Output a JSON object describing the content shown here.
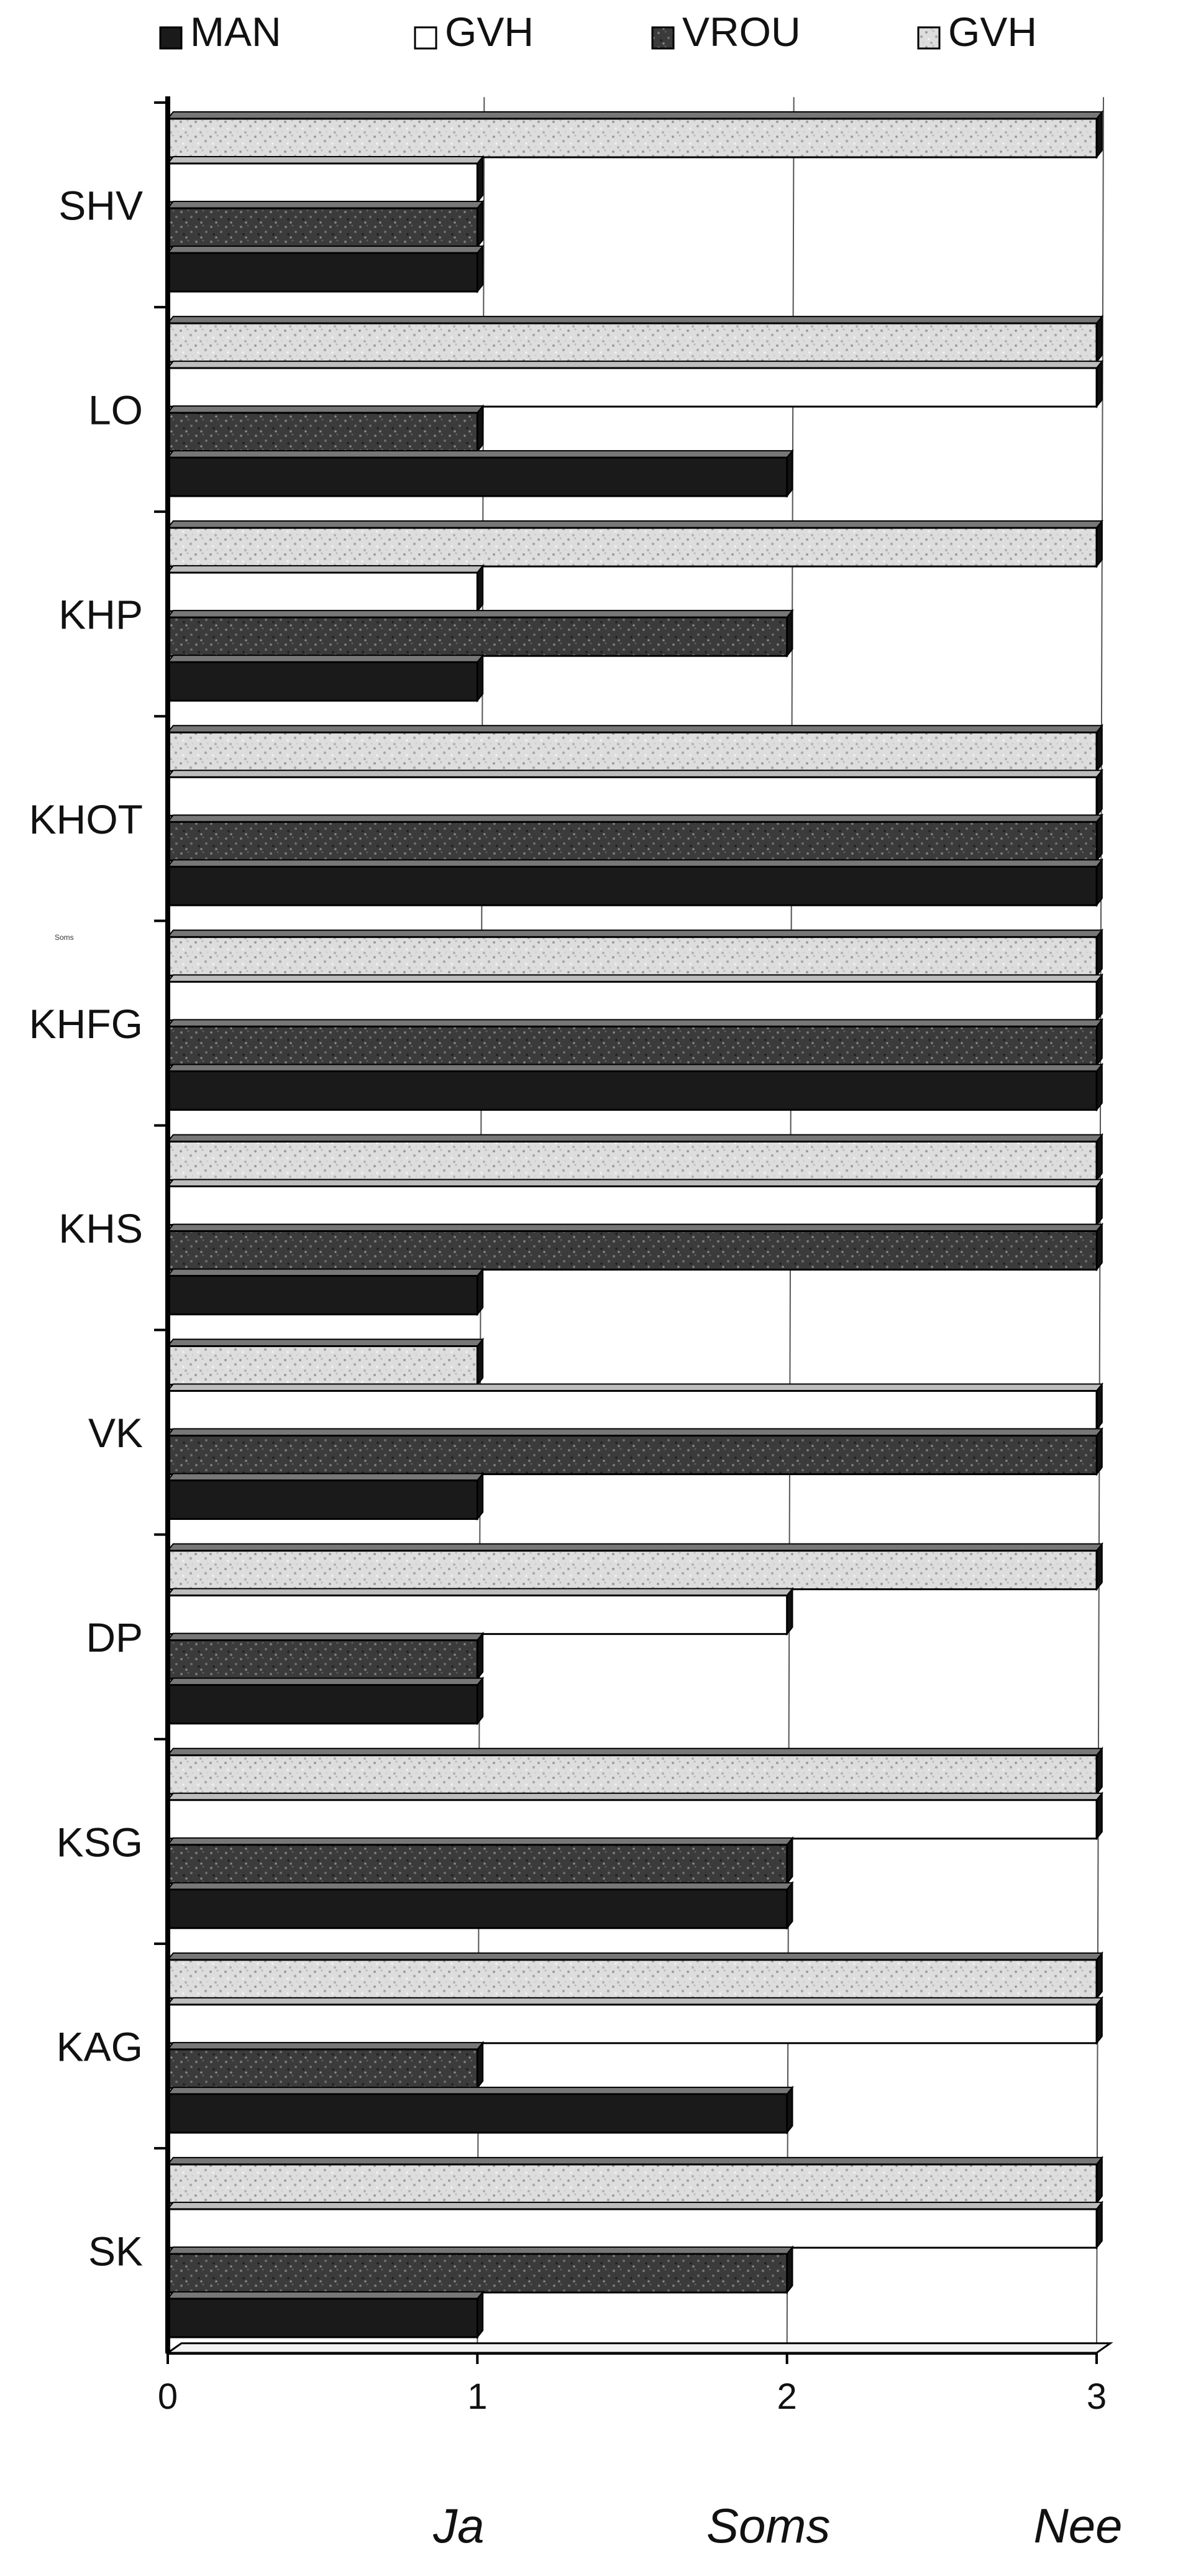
{
  "chart_data": {
    "type": "bar",
    "orientation": "horizontal",
    "categories": [
      "SHV",
      "LO",
      "KHP",
      "KHOT",
      "KHFG",
      "KHS",
      "VK",
      "DP",
      "KSG",
      "KAG",
      "SK"
    ],
    "series": [
      {
        "name": "MAN",
        "values": [
          1,
          2,
          1,
          3,
          3,
          1,
          1,
          1,
          2,
          2,
          1
        ]
      },
      {
        "name": "GVH",
        "values": [
          1,
          3,
          1,
          3,
          3,
          3,
          3,
          2,
          3,
          3,
          3
        ]
      },
      {
        "name": "VROU",
        "values": [
          1,
          1,
          2,
          3,
          3,
          3,
          3,
          1,
          2,
          1,
          2
        ]
      },
      {
        "name": "GVH",
        "values": [
          3,
          3,
          3,
          3,
          3,
          3,
          1,
          3,
          3,
          3,
          3
        ]
      }
    ],
    "series_colors": [
      "#1b1b1b",
      "#ffffff",
      "#3a3a3a",
      "#d9d9d9"
    ],
    "xlim": [
      0,
      3
    ],
    "x_ticks": [
      0,
      1,
      2,
      3
    ],
    "x_tick_labels": [
      "0",
      "1",
      "2",
      "3"
    ],
    "x_category_labels": [
      "Ja",
      "Soms",
      "Nee"
    ],
    "grid": true,
    "legend_position": "top",
    "annotation": "Soms",
    "title": "",
    "xlabel": "",
    "ylabel": ""
  }
}
